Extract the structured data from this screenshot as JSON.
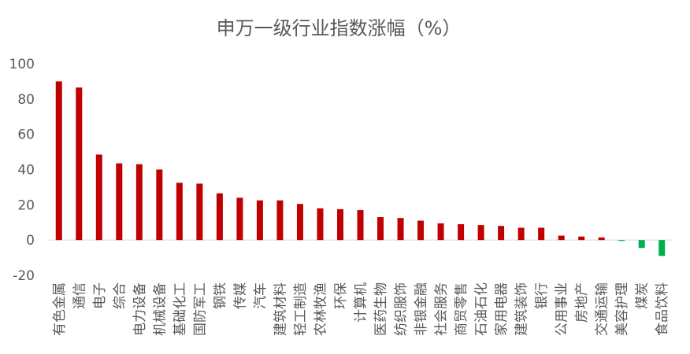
{
  "chart_data": {
    "type": "bar",
    "title": "申万一级行业指数涨幅（%）",
    "xlabel": "",
    "ylabel": "",
    "ylim": [
      -20,
      100
    ],
    "yticks": [
      -20,
      0,
      20,
      40,
      60,
      80,
      100
    ],
    "grid": false,
    "legend": "none",
    "categories": [
      "有色金属",
      "通信",
      "电子",
      "综合",
      "电力设备",
      "机械设备",
      "基础化工",
      "国防军工",
      "钢铁",
      "传媒",
      "汽车",
      "建筑材料",
      "轻工制造",
      "农林牧渔",
      "环保",
      "计算机",
      "医药生物",
      "纺织服饰",
      "非银金融",
      "社会服务",
      "商贸零售",
      "石油石化",
      "家用电器",
      "建筑装饰",
      "银行",
      "公用事业",
      "房地产",
      "交通运输",
      "美容护理",
      "煤炭",
      "食品饮料"
    ],
    "values": [
      90,
      86.5,
      48.5,
      43.5,
      43,
      40,
      32.5,
      32,
      26.5,
      24,
      22.5,
      22.5,
      20.5,
      18,
      17.5,
      17,
      13,
      12.5,
      11,
      9.5,
      9,
      8.5,
      8,
      7,
      7,
      2.5,
      2,
      1.5,
      -0.5,
      -4.5,
      -9
    ],
    "colors": {
      "positive": "#c00000",
      "negative": "#00b050"
    }
  }
}
